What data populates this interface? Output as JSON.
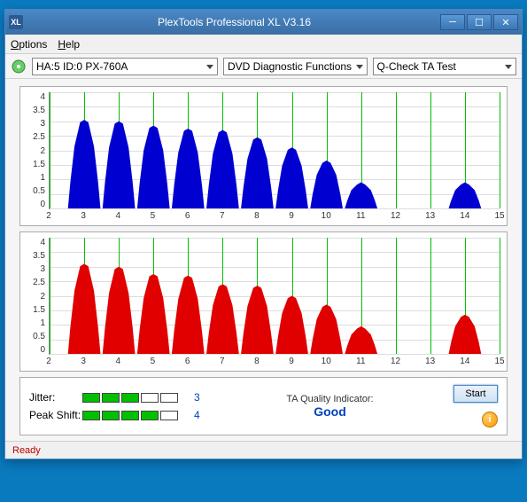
{
  "window": {
    "title": "PlexTools Professional XL V3.16",
    "icon_text": "XL"
  },
  "menu": {
    "options": "Options",
    "help": "Help"
  },
  "toolbar": {
    "drive": "HA:5 ID:0   PX-760A",
    "func": "DVD Diagnostic Functions",
    "test": "Q-Check TA Test"
  },
  "charts": {
    "ymax": 4.0,
    "yticks": [
      "4",
      "3.5",
      "3",
      "2.5",
      "2",
      "1.5",
      "1",
      "0.5",
      "0"
    ],
    "xmin": 2,
    "xmax": 15,
    "xticks": [
      2,
      3,
      4,
      5,
      6,
      7,
      8,
      9,
      10,
      11,
      12,
      13,
      14,
      15
    ],
    "series": [
      {
        "color": "#0000d0",
        "peaks": [
          {
            "c": 3,
            "h": 3.05
          },
          {
            "c": 4,
            "h": 3.0
          },
          {
            "c": 5,
            "h": 2.85
          },
          {
            "c": 6,
            "h": 2.75
          },
          {
            "c": 7,
            "h": 2.7
          },
          {
            "c": 8,
            "h": 2.45
          },
          {
            "c": 9,
            "h": 2.1
          },
          {
            "c": 10,
            "h": 1.65
          },
          {
            "c": 11,
            "h": 0.9
          },
          {
            "c": 14,
            "h": 0.9
          }
        ]
      },
      {
        "color": "#e00000",
        "peaks": [
          {
            "c": 3,
            "h": 3.1
          },
          {
            "c": 4,
            "h": 3.0
          },
          {
            "c": 5,
            "h": 2.75
          },
          {
            "c": 6,
            "h": 2.7
          },
          {
            "c": 7,
            "h": 2.4
          },
          {
            "c": 8,
            "h": 2.35
          },
          {
            "c": 9,
            "h": 2.0
          },
          {
            "c": 10,
            "h": 1.7
          },
          {
            "c": 11,
            "h": 0.95
          },
          {
            "c": 14,
            "h": 1.35
          }
        ]
      }
    ]
  },
  "results": {
    "jitter_label": "Jitter:",
    "jitter_segments": 5,
    "jitter_on": 3,
    "jitter_value": "3",
    "peak_label": "Peak Shift:",
    "peak_segments": 5,
    "peak_on": 4,
    "peak_value": "4",
    "ta_label": "TA Quality Indicator:",
    "ta_value": "Good",
    "start": "Start"
  },
  "status": "Ready"
}
